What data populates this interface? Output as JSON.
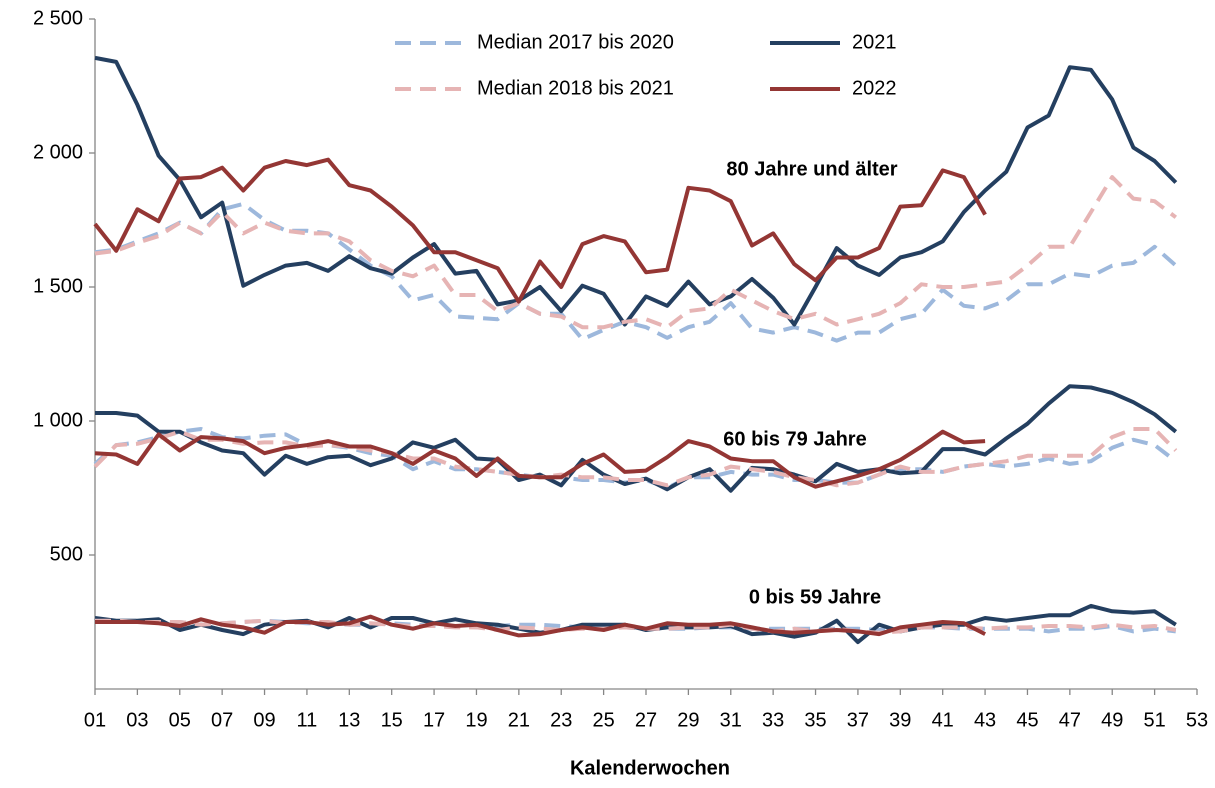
{
  "chart_data": {
    "type": "line",
    "x_label": "Kalenderwochen",
    "xlim": [
      1,
      53
    ],
    "ylim": [
      0,
      2500
    ],
    "xticks": [
      {
        "value": 1,
        "label": "01"
      },
      {
        "value": 3,
        "label": "03"
      },
      {
        "value": 5,
        "label": "05"
      },
      {
        "value": 7,
        "label": "07"
      },
      {
        "value": 9,
        "label": "09"
      },
      11,
      13,
      15,
      17,
      19,
      21,
      23,
      25,
      27,
      29,
      31,
      33,
      35,
      37,
      39,
      41,
      43,
      45,
      47,
      49,
      51,
      53
    ],
    "yticks": [
      500,
      {
        "value": 1000,
        "label": "1 000"
      },
      {
        "value": 1500,
        "label": "1 500"
      },
      {
        "value": 2000,
        "label": "2 000"
      },
      {
        "value": 2500,
        "label": "2 500"
      }
    ],
    "x": [
      1,
      2,
      3,
      4,
      5,
      6,
      7,
      8,
      9,
      10,
      11,
      12,
      13,
      14,
      15,
      16,
      17,
      18,
      19,
      20,
      21,
      22,
      23,
      24,
      25,
      26,
      27,
      28,
      29,
      30,
      31,
      32,
      33,
      34,
      35,
      36,
      37,
      38,
      39,
      40,
      41,
      42,
      43,
      44,
      45,
      46,
      47,
      48,
      49,
      50,
      51,
      52
    ],
    "series": [
      {
        "name": "Median 2017 bis 2020",
        "color": "#9db8dc",
        "dashed": true
      },
      {
        "name": "2021",
        "color": "#243f60",
        "dashed": false
      },
      {
        "name": "Median 2018 bis 2021",
        "color": "#e6b4b4",
        "dashed": true
      },
      {
        "name": "2022",
        "color": "#943634",
        "dashed": false
      }
    ],
    "groups": [
      {
        "label": "80 Jahre und älter",
        "series": [
          {
            "values": [
              1630,
              1640,
              1670,
              1700,
              1740,
              1700,
              1790,
              1810,
              1750,
              1710,
              1710,
              1700,
              1640,
              1580,
              1540,
              1450,
              1470,
              1390,
              1385,
              1380,
              1440,
              1400,
              1400,
              1305,
              1340,
              1370,
              1350,
              1310,
              1350,
              1370,
              1440,
              1345,
              1330,
              1350,
              1330,
              1300,
              1330,
              1330,
              1380,
              1400,
              1490,
              1430,
              1420,
              1450,
              1510,
              1510,
              1550,
              1540,
              1580,
              1590,
              1650,
              1580
            ]
          },
          {
            "values": [
              2355,
              2340,
              2180,
              1990,
              1900,
              1760,
              1815,
              1505,
              1545,
              1580,
              1590,
              1560,
              1615,
              1570,
              1550,
              1610,
              1660,
              1550,
              1560,
              1435,
              1450,
              1500,
              1410,
              1505,
              1475,
              1360,
              1465,
              1430,
              1520,
              1435,
              1465,
              1530,
              1460,
              1360,
              1500,
              1645,
              1580,
              1545,
              1610,
              1630,
              1670,
              1780,
              1860,
              1930,
              2095,
              2140,
              2320,
              2310,
              2200,
              2020,
              1970,
              1890
            ]
          },
          {
            "values": [
              1625,
              1635,
              1665,
              1690,
              1740,
              1700,
              1780,
              1700,
              1740,
              1710,
              1700,
              1700,
              1670,
              1600,
              1560,
              1540,
              1580,
              1470,
              1470,
              1410,
              1440,
              1400,
              1390,
              1350,
              1350,
              1370,
              1380,
              1350,
              1410,
              1420,
              1490,
              1450,
              1410,
              1380,
              1400,
              1360,
              1380,
              1400,
              1440,
              1510,
              1500,
              1500,
              1510,
              1520,
              1580,
              1650,
              1650,
              1780,
              1910,
              1830,
              1820,
              1760
            ]
          },
          {
            "values": [
              1735,
              1635,
              1790,
              1745,
              1905,
              1910,
              1945,
              1860,
              1945,
              1970,
              1955,
              1975,
              1880,
              1860,
              1800,
              1730,
              1630,
              1630,
              1600,
              1570,
              1445,
              1595,
              1500,
              1660,
              1690,
              1670,
              1555,
              1565,
              1870,
              1860,
              1820,
              1655,
              1700,
              1585,
              1525,
              1610,
              1610,
              1645,
              1800,
              1805,
              1935,
              1910,
              1770,
              null,
              null,
              null,
              null,
              null,
              null,
              null,
              null,
              null
            ]
          }
        ]
      },
      {
        "label": "60 bis 79 Jahre",
        "series": [
          {
            "values": [
              840,
              910,
              920,
              940,
              960,
              970,
              940,
              935,
              945,
              950,
              910,
              910,
              900,
              880,
              870,
              820,
              850,
              820,
              820,
              810,
              800,
              790,
              790,
              780,
              780,
              770,
              780,
              750,
              790,
              790,
              810,
              800,
              800,
              780,
              780,
              770,
              770,
              800,
              820,
              820,
              810,
              830,
              840,
              830,
              840,
              860,
              840,
              850,
              900,
              930,
              910,
              850
            ]
          },
          {
            "values": [
              1030,
              1030,
              1020,
              960,
              960,
              920,
              890,
              880,
              800,
              870,
              840,
              865,
              870,
              835,
              860,
              920,
              900,
              930,
              860,
              855,
              780,
              800,
              760,
              855,
              800,
              765,
              785,
              745,
              790,
              820,
              740,
              825,
              820,
              800,
              775,
              840,
              810,
              820,
              805,
              810,
              895,
              895,
              875,
              935,
              990,
              1065,
              1130,
              1125,
              1105,
              1070,
              1025,
              960
            ]
          },
          {
            "values": [
              830,
              910,
              915,
              935,
              960,
              930,
              930,
              915,
              920,
              920,
              905,
              910,
              905,
              890,
              880,
              860,
              860,
              830,
              820,
              810,
              800,
              790,
              800,
              790,
              790,
              780,
              780,
              760,
              790,
              800,
              830,
              820,
              810,
              790,
              780,
              760,
              770,
              800,
              830,
              810,
              810,
              830,
              840,
              850,
              870,
              870,
              870,
              870,
              940,
              970,
              970,
              890
            ]
          },
          {
            "values": [
              880,
              875,
              840,
              950,
              890,
              940,
              935,
              925,
              880,
              900,
              910,
              925,
              905,
              905,
              880,
              840,
              890,
              860,
              795,
              860,
              795,
              790,
              790,
              840,
              875,
              810,
              815,
              865,
              925,
              905,
              860,
              850,
              850,
              790,
              755,
              775,
              795,
              820,
              855,
              905,
              960,
              920,
              925,
              null,
              null,
              null,
              null,
              null,
              null,
              null,
              null,
              null
            ]
          }
        ]
      },
      {
        "label": "0 bis 59 Jahre",
        "series": [
          {
            "values": [
              255,
              255,
              255,
              250,
              250,
              240,
              245,
              250,
              255,
              250,
              245,
              245,
              240,
              240,
              245,
              240,
              235,
              235,
              230,
              235,
              240,
              240,
              235,
              230,
              230,
              230,
              225,
              225,
              225,
              230,
              230,
              225,
              225,
              225,
              225,
              225,
              225,
              220,
              225,
              230,
              230,
              225,
              225,
              225,
              225,
              215,
              225,
              225,
              235,
              215,
              225,
              215
            ]
          },
          {
            "values": [
              265,
              255,
              255,
              260,
              220,
              240,
              220,
              205,
              240,
              250,
              255,
              230,
              265,
              230,
              265,
              265,
              245,
              260,
              245,
              240,
              225,
              210,
              220,
              240,
              240,
              240,
              220,
              230,
              230,
              230,
              235,
              205,
              210,
              195,
              210,
              255,
              175,
              240,
              215,
              230,
              240,
              240,
              265,
              255,
              265,
              275,
              275,
              310,
              290,
              285,
              290,
              240
            ]
          },
          {
            "values": [
              255,
              255,
              250,
              250,
              250,
              240,
              245,
              250,
              255,
              245,
              250,
              250,
              240,
              245,
              240,
              235,
              235,
              230,
              230,
              220,
              230,
              225,
              220,
              225,
              225,
              230,
              225,
              225,
              230,
              230,
              240,
              225,
              215,
              225,
              215,
              225,
              215,
              210,
              215,
              230,
              230,
              230,
              225,
              230,
              230,
              235,
              235,
              230,
              240,
              230,
              235,
              220
            ]
          },
          {
            "values": [
              250,
              250,
              250,
              245,
              235,
              260,
              240,
              230,
              210,
              250,
              250,
              240,
              245,
              270,
              240,
              225,
              245,
              235,
              240,
              220,
              200,
              205,
              220,
              230,
              220,
              240,
              225,
              245,
              240,
              240,
              245,
              230,
              215,
              210,
              215,
              220,
              215,
              205,
              230,
              240,
              250,
              245,
              205,
              null,
              null,
              null,
              null,
              null,
              null,
              null,
              null,
              null
            ]
          }
        ]
      }
    ]
  }
}
